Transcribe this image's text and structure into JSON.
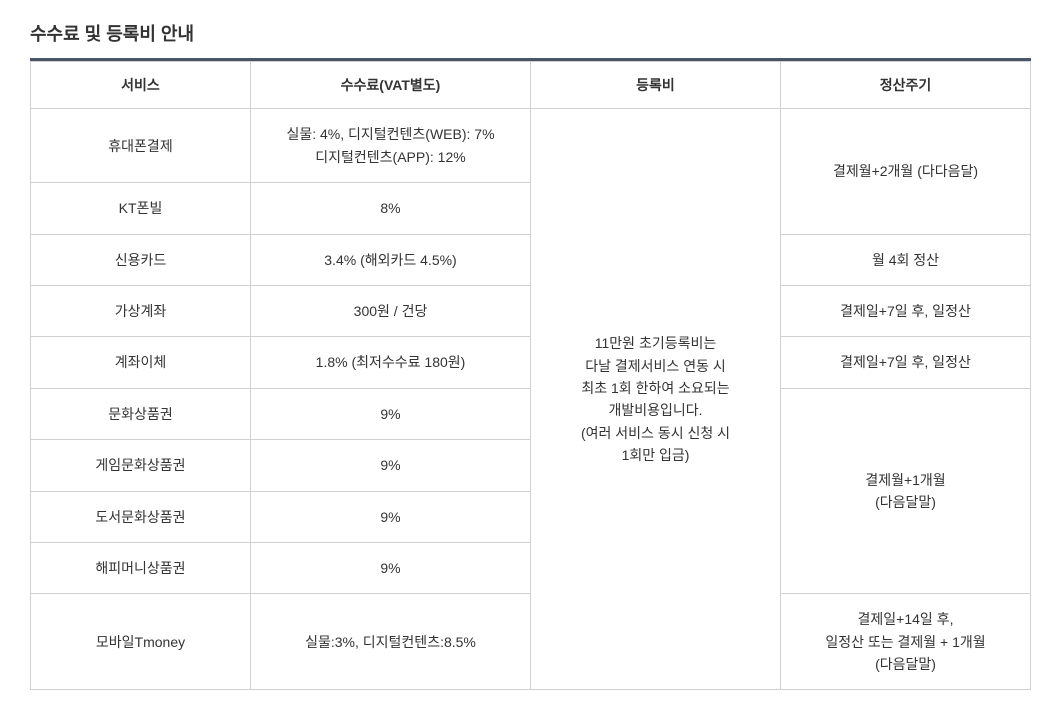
{
  "title": "수수료 및 등록비 안내",
  "headers": {
    "service": "서비스",
    "fee": "수수료(VAT별도)",
    "registration": "등록비",
    "cycle": "정산주기"
  },
  "registration_note": "11만원 초기등록비는\n다날 결제서비스 연동 시\n최초 1회 한하여 소요되는\n개발비용입니다.\n(여러 서비스 동시 신청 시\n1회만 입금)",
  "cycles": {
    "c1": "결제월+2개월 (다다음달)",
    "c2": "월 4회 정산",
    "c3": "결제일+7일 후, 일정산",
    "c4": "결제일+7일 후, 일정산",
    "c5": "결제월+1개월\n(다음달말)",
    "c6": "결제일+14일 후,\n일정산 또는 결제월 + 1개월\n(다음달말)"
  },
  "rows": {
    "r0": {
      "service": "휴대폰결제",
      "fee": "실물: 4%, 디지털컨텐츠(WEB): 7%\n디지털컨텐츠(APP): 12%"
    },
    "r1": {
      "service": "KT폰빌",
      "fee": "8%"
    },
    "r2": {
      "service": "신용카드",
      "fee": "3.4% (해외카드 4.5%)"
    },
    "r3": {
      "service": "가상계좌",
      "fee": "300원 / 건당"
    },
    "r4": {
      "service": "계좌이체",
      "fee": "1.8% (최저수수료 180원)"
    },
    "r5": {
      "service": "문화상품권",
      "fee": "9%"
    },
    "r6": {
      "service": "게임문화상품권",
      "fee": "9%"
    },
    "r7": {
      "service": "도서문화상품권",
      "fee": "9%"
    },
    "r8": {
      "service": "해피머니상품권",
      "fee": "9%"
    },
    "r9": {
      "service": "모바일Tmoney",
      "fee": "실물:3%, 디지털컨텐츠:8.5%"
    }
  },
  "style": {
    "title_color": "#333333",
    "title_border_color": "#4a5568",
    "cell_border_color": "#d0d0d0",
    "text_color": "#333333",
    "background_color": "#ffffff",
    "title_fontsize": 18,
    "cell_fontsize": 14
  }
}
